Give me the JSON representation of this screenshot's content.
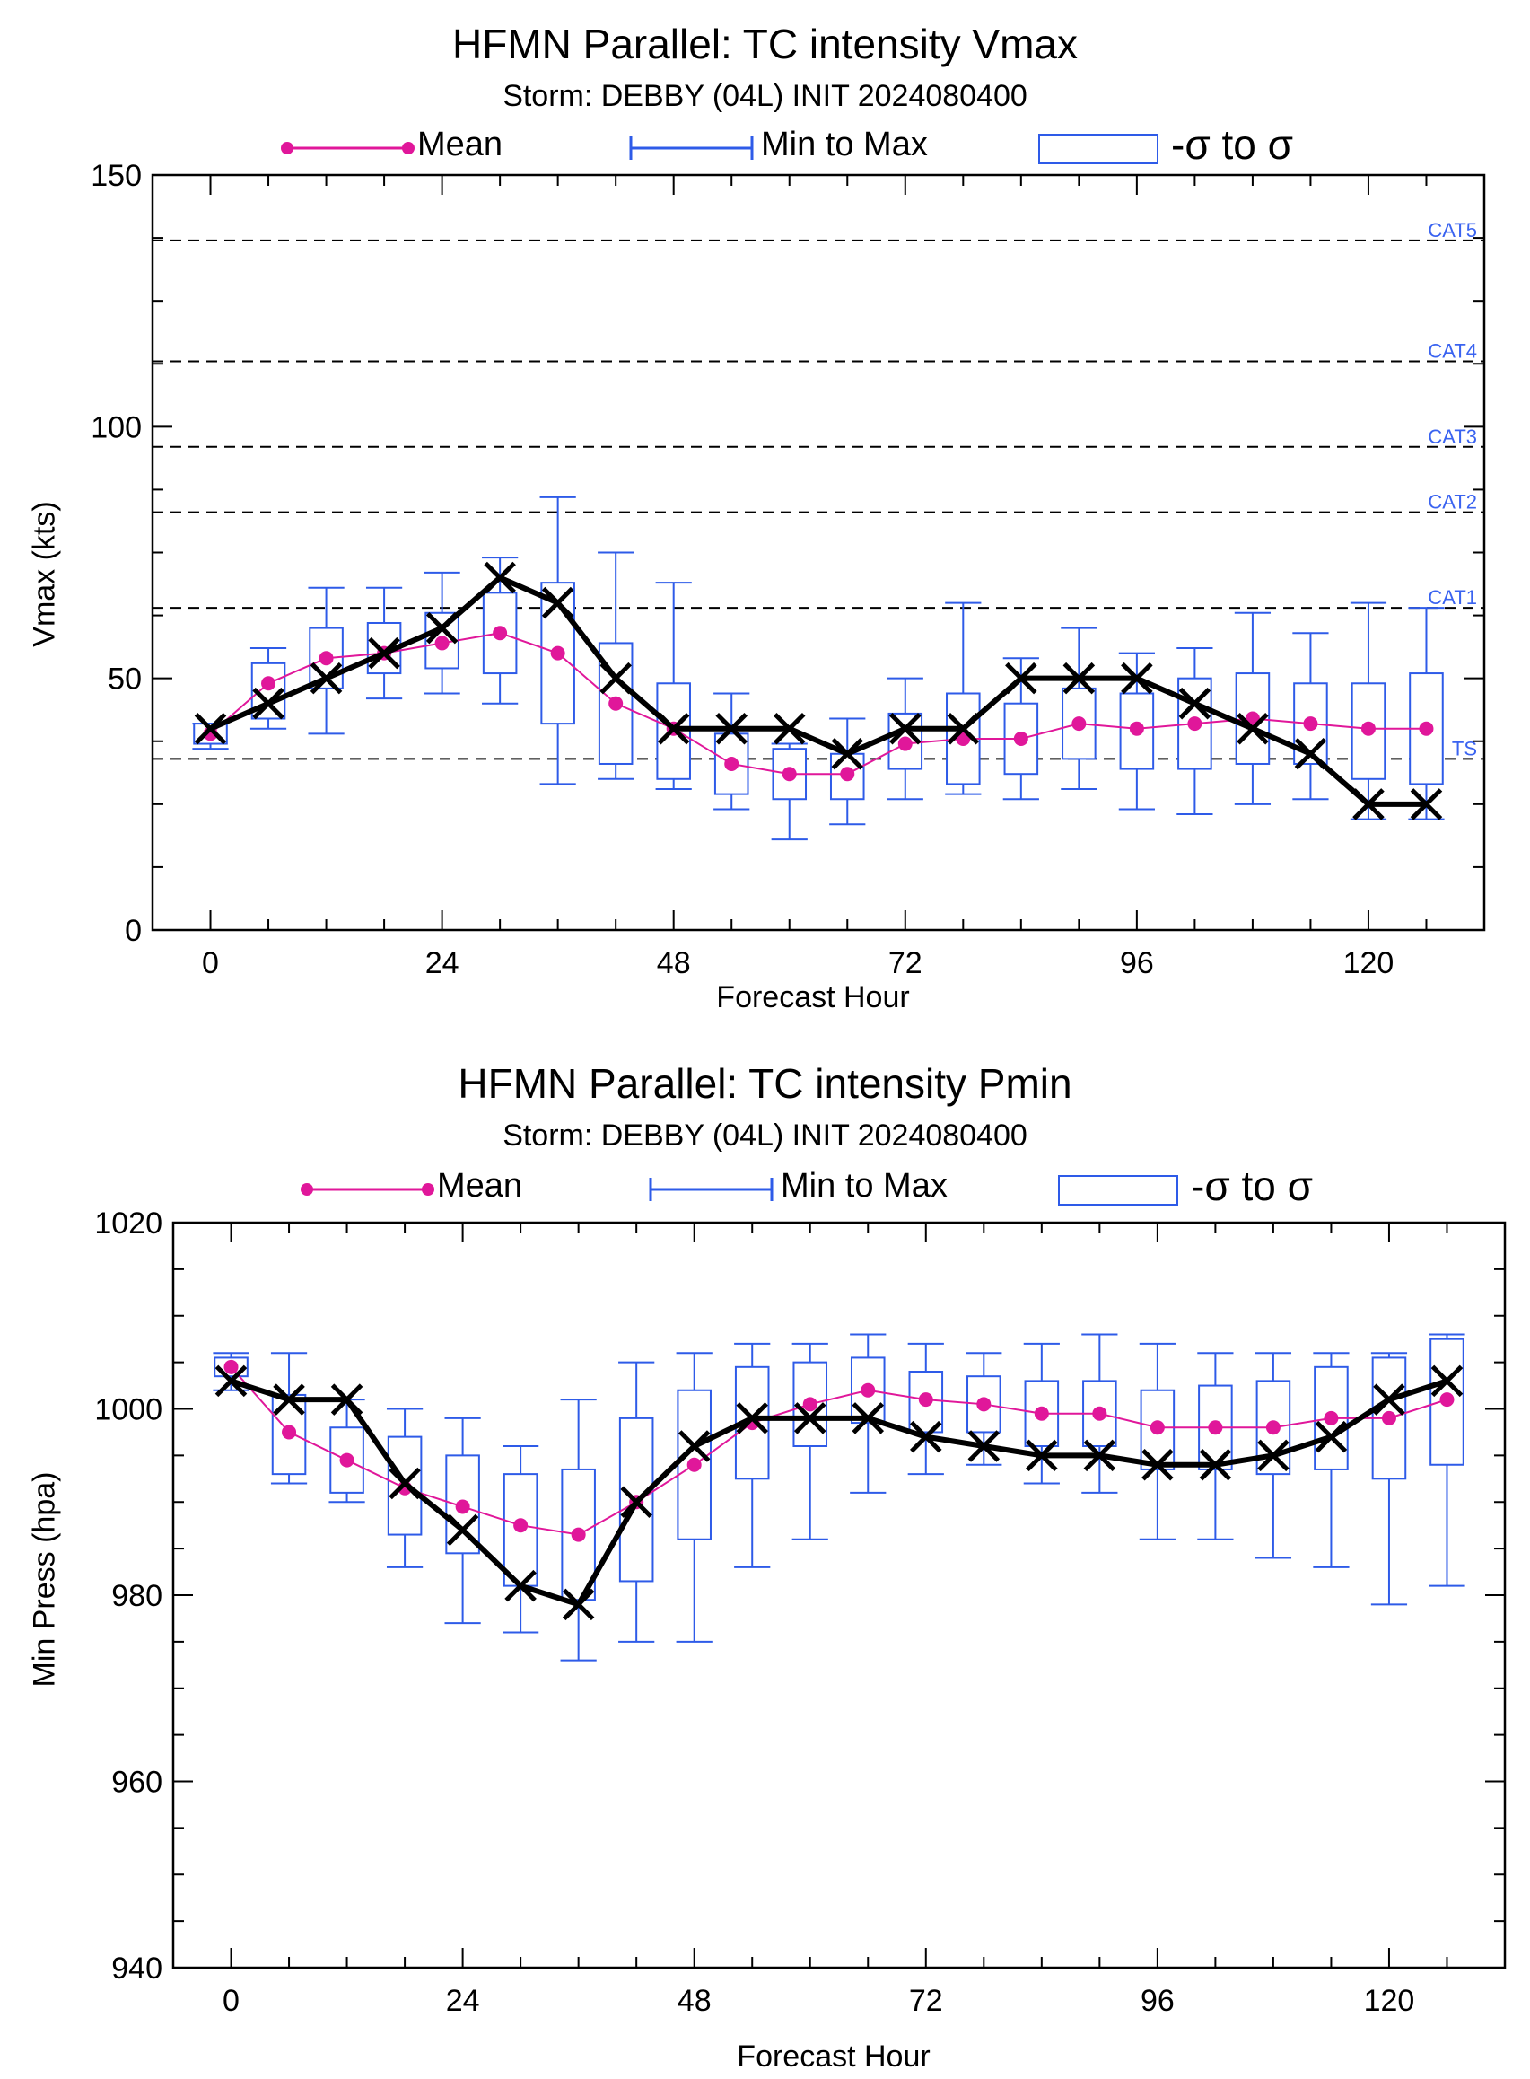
{
  "legend": {
    "mean_label": "Mean",
    "minmax_label": "Min to Max",
    "sigma_label": "-σ to σ"
  },
  "colors": {
    "mean": "#e0179a",
    "box": "#2e5be8",
    "best_track": "#000000",
    "category_label": "#3a63f0"
  },
  "chart_data": [
    {
      "type": "box",
      "title": "HFMN Parallel: TC intensity Vmax",
      "subtitle": "Storm: DEBBY (04L) INIT 2024080400",
      "xlabel": "Forecast Hour",
      "ylabel": "Vmax (kts)",
      "xlim": [
        -6,
        132
      ],
      "ylim": [
        0,
        150
      ],
      "xticks": [
        0,
        24,
        48,
        72,
        96,
        120
      ],
      "yticks": [
        0,
        50,
        100,
        150
      ],
      "grid": false,
      "legend_position": "top",
      "hours": [
        0,
        6,
        12,
        18,
        24,
        30,
        36,
        42,
        48,
        54,
        60,
        66,
        72,
        78,
        84,
        90,
        96,
        102,
        108,
        114,
        120,
        126
      ],
      "mean": [
        39,
        49,
        54,
        55,
        57,
        59,
        55,
        45,
        40,
        33,
        31,
        31,
        37,
        38,
        38,
        41,
        40,
        41,
        42,
        41,
        40,
        40
      ],
      "sigma_low": [
        37,
        42,
        48,
        51,
        52,
        51,
        41,
        33,
        30,
        27,
        26,
        26,
        32,
        29,
        31,
        34,
        32,
        32,
        33,
        33,
        30,
        29
      ],
      "sigma_high": [
        41,
        53,
        60,
        61,
        63,
        67,
        69,
        57,
        49,
        39,
        36,
        35,
        43,
        47,
        45,
        48,
        47,
        50,
        51,
        49,
        49,
        51
      ],
      "min": [
        36,
        40,
        39,
        46,
        47,
        45,
        29,
        30,
        28,
        24,
        18,
        21,
        26,
        27,
        26,
        28,
        24,
        23,
        25,
        26,
        22,
        22
      ],
      "max": [
        41,
        56,
        68,
        68,
        71,
        74,
        86,
        75,
        69,
        47,
        37,
        42,
        50,
        65,
        54,
        60,
        55,
        56,
        63,
        59,
        65,
        64
      ],
      "best_track": [
        40,
        45,
        50,
        55,
        60,
        70,
        65,
        50,
        40,
        40,
        40,
        35,
        40,
        40,
        50,
        50,
        50,
        45,
        40,
        35,
        25,
        25
      ],
      "reference_lines": [
        {
          "label": "TS",
          "value": 34
        },
        {
          "label": "CAT1",
          "value": 64
        },
        {
          "label": "CAT2",
          "value": 83
        },
        {
          "label": "CAT3",
          "value": 96
        },
        {
          "label": "CAT4",
          "value": 113
        },
        {
          "label": "CAT5",
          "value": 137
        }
      ]
    },
    {
      "type": "box",
      "title": "HFMN Parallel: TC intensity Pmin",
      "subtitle": "Storm: DEBBY (04L) INIT 2024080400",
      "xlabel": "Forecast Hour",
      "ylabel": "Min Press (hpa)",
      "xlim": [
        -6,
        132
      ],
      "ylim": [
        940,
        1020
      ],
      "xticks": [
        0,
        24,
        48,
        72,
        96,
        120
      ],
      "yticks": [
        940,
        960,
        980,
        1000,
        1020
      ],
      "grid": false,
      "legend_position": "top",
      "hours": [
        0,
        6,
        12,
        18,
        24,
        30,
        36,
        42,
        48,
        54,
        60,
        66,
        72,
        78,
        84,
        90,
        96,
        102,
        108,
        114,
        120,
        126
      ],
      "mean": [
        1004.5,
        997.5,
        994.5,
        991.5,
        989.5,
        987.5,
        986.5,
        990,
        994,
        998.5,
        1000.5,
        1002,
        1001,
        1000.5,
        999.5,
        999.5,
        998,
        998,
        998,
        999,
        999,
        1001
      ],
      "sigma_low": [
        1003.5,
        993,
        991,
        986.5,
        984.5,
        981,
        979.5,
        981.5,
        986,
        992.5,
        996,
        998.5,
        997.5,
        997.5,
        996,
        996,
        993.5,
        993.5,
        993,
        993.5,
        992.5,
        994
      ],
      "sigma_high": [
        1005.5,
        1001.5,
        998,
        997,
        995,
        993,
        993.5,
        999,
        1002,
        1004.5,
        1005,
        1005.5,
        1004,
        1003.5,
        1003,
        1003,
        1002,
        1002.5,
        1003,
        1004.5,
        1005.5,
        1007.5
      ],
      "min": [
        1002,
        992,
        990,
        983,
        977,
        976,
        973,
        975,
        975,
        983,
        986,
        991,
        993,
        994,
        992,
        991,
        986,
        986,
        984,
        983,
        979,
        981
      ],
      "max": [
        1006,
        1006,
        1001,
        1000,
        999,
        996,
        1001,
        1005,
        1006,
        1007,
        1007,
        1008,
        1007,
        1006,
        1007,
        1008,
        1007,
        1006,
        1006,
        1006,
        1006,
        1008
      ],
      "best_track": [
        1003,
        1001,
        1001,
        992,
        987,
        981,
        979,
        990,
        996,
        999,
        999,
        999,
        997,
        996,
        995,
        995,
        994,
        994,
        995,
        997,
        1001,
        1003
      ],
      "reference_lines": []
    }
  ]
}
